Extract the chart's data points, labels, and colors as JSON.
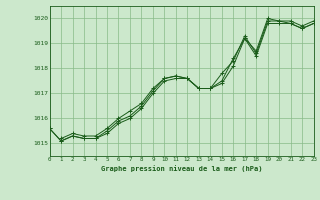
{
  "background_color": "#cce8cc",
  "plot_bg_color": "#cce8cc",
  "grid_color": "#88bb88",
  "line_color": "#1a5c1a",
  "xlabel": "Graphe pression niveau de la mer (hPa)",
  "xlim": [
    0,
    23
  ],
  "ylim": [
    1014.5,
    1020.5
  ],
  "yticks": [
    1015,
    1016,
    1017,
    1018,
    1019,
    1020
  ],
  "xticks": [
    0,
    1,
    2,
    3,
    4,
    5,
    6,
    7,
    8,
    9,
    10,
    11,
    12,
    13,
    14,
    15,
    16,
    17,
    18,
    19,
    20,
    21,
    22,
    23
  ],
  "series": [
    {
      "x": [
        0,
        1,
        2,
        3,
        4,
        5,
        6,
        7,
        8,
        9,
        10,
        11,
        12,
        13,
        14,
        15,
        16,
        17,
        18,
        19,
        20,
        21,
        22,
        23
      ],
      "y": [
        1015.6,
        1015.1,
        1015.3,
        1015.2,
        1015.2,
        1015.4,
        1015.8,
        1016.0,
        1016.4,
        1017.0,
        1017.5,
        1017.6,
        1017.6,
        1017.2,
        1017.2,
        1017.4,
        1018.1,
        1019.2,
        1018.5,
        1019.8,
        1019.8,
        1019.8,
        1019.6,
        1019.8
      ]
    },
    {
      "x": [
        0,
        1,
        2,
        3,
        4,
        5,
        6,
        7,
        8,
        9,
        10,
        11,
        12,
        13,
        14,
        15,
        16,
        17,
        18,
        19,
        20,
        21,
        22,
        23
      ],
      "y": [
        1015.6,
        1015.1,
        1015.3,
        1015.2,
        1015.2,
        1015.5,
        1015.9,
        1016.1,
        1016.5,
        1017.1,
        1017.6,
        1017.7,
        1017.6,
        1017.2,
        1017.2,
        1017.8,
        1018.3,
        1019.3,
        1018.6,
        1019.9,
        1019.9,
        1019.9,
        1019.7,
        1019.9
      ]
    },
    {
      "x": [
        1,
        2,
        3,
        4,
        5,
        6,
        7,
        8,
        9,
        10,
        11,
        12,
        13,
        14,
        15,
        16,
        17,
        18,
        19,
        20,
        21,
        22,
        23
      ],
      "y": [
        1015.2,
        1015.4,
        1015.3,
        1015.3,
        1015.6,
        1016.0,
        1016.3,
        1016.6,
        1017.2,
        1017.6,
        1017.7,
        1017.6,
        1017.2,
        1017.2,
        1017.5,
        1018.4,
        1019.2,
        1018.7,
        1020.0,
        1019.9,
        1019.8,
        1019.6,
        1019.8
      ]
    }
  ]
}
